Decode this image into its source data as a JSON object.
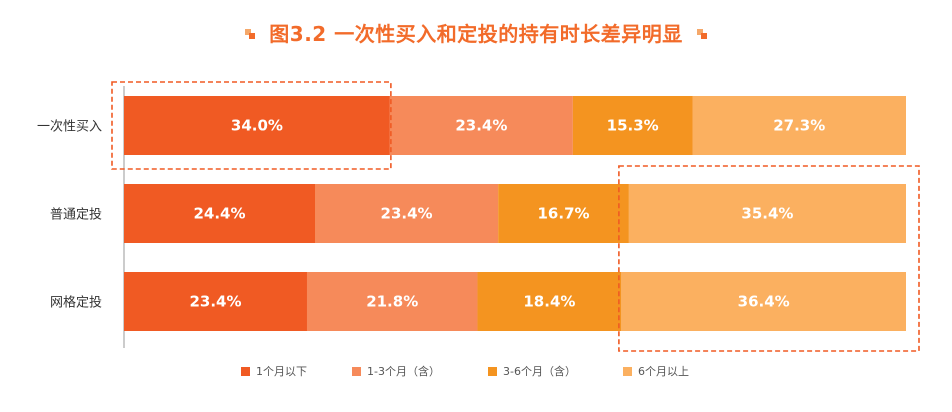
{
  "title": "图3.2  一次性买入和定投的持有时长差异明显",
  "chart_data": {
    "type": "bar",
    "orientation": "horizontal",
    "stacked": true,
    "percent_stacked": true,
    "categories": [
      "一次性买入",
      "普通定投",
      "网格定投"
    ],
    "series": [
      {
        "name": "1个月以下",
        "values": [
          34.0,
          24.4,
          23.4
        ],
        "color": "#f05a23"
      },
      {
        "name": "1-3个月（含）",
        "values": [
          23.4,
          23.4,
          21.8
        ],
        "color": "#f68a5a"
      },
      {
        "name": "3-6个月（含）",
        "values": [
          15.3,
          16.7,
          18.4
        ],
        "color": "#f49420"
      },
      {
        "name": "6个月以上",
        "values": [
          27.3,
          35.4,
          36.4
        ],
        "color": "#fbb060"
      }
    ],
    "data_labels": [
      [
        "34.0%",
        "23.4%",
        "15.3%",
        "27.3%"
      ],
      [
        "24.4%",
        "23.4%",
        "16.7%",
        "35.4%"
      ],
      [
        "23.4%",
        "21.8%",
        "18.4%",
        "36.4%"
      ]
    ],
    "legend_position": "bottom",
    "grid": false,
    "highlight_color": "#f05a23"
  }
}
